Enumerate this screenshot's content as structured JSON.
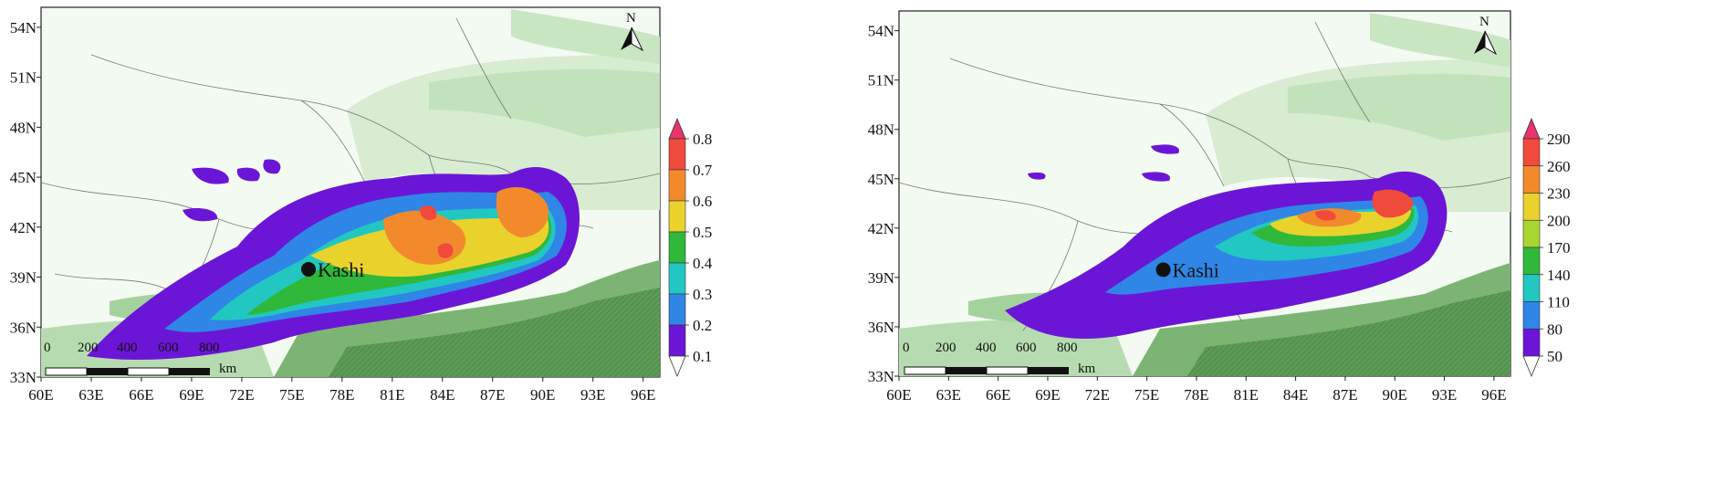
{
  "maps": [
    {
      "id": "left",
      "x_ticks": [
        "60E",
        "63E",
        "66E",
        "69E",
        "72E",
        "75E",
        "78E",
        "81E",
        "84E",
        "87E",
        "90E",
        "93E",
        "96E"
      ],
      "y_ticks": [
        "54N",
        "51N",
        "48N",
        "45N",
        "42N",
        "39N",
        "36N",
        "33N"
      ],
      "city": {
        "label": "Kashi",
        "lon": 75.99,
        "lat": 39.47
      },
      "colorbar": {
        "labels": [
          "0.8",
          "0.7",
          "0.6",
          "0.5",
          "0.4",
          "0.3",
          "0.2",
          "0.1"
        ],
        "colors": [
          "#e8336b",
          "#f04a3c",
          "#f28a2c",
          "#e9d22c",
          "#2fb83a",
          "#22c7c2",
          "#2f86e6",
          "#6b16d6",
          "#ffffff"
        ]
      },
      "scalebar": {
        "labels": [
          "0",
          "200",
          "400",
          "600",
          "800"
        ],
        "unit": "km"
      },
      "north": "N"
    },
    {
      "id": "right",
      "x_ticks": [
        "60E",
        "63E",
        "66E",
        "69E",
        "72E",
        "75E",
        "78E",
        "81E",
        "84E",
        "87E",
        "90E",
        "93E",
        "96E"
      ],
      "y_ticks": [
        "54N",
        "51N",
        "48N",
        "45N",
        "42N",
        "39N",
        "36N",
        "33N"
      ],
      "city": {
        "label": "Kashi",
        "lon": 75.99,
        "lat": 39.47
      },
      "colorbar": {
        "labels": [
          "290",
          "260",
          "230",
          "200",
          "170",
          "140",
          "110",
          "80",
          "50"
        ],
        "colors": [
          "#e8336b",
          "#f04a3c",
          "#f28a2c",
          "#e9d22c",
          "#a9d62e",
          "#2fb83a",
          "#22c7c2",
          "#2f86e6",
          "#6b16d6",
          "#ffffff"
        ]
      },
      "scalebar": {
        "labels": [
          "0",
          "200",
          "400",
          "600",
          "800"
        ],
        "unit": "km"
      },
      "north": "N"
    }
  ]
}
